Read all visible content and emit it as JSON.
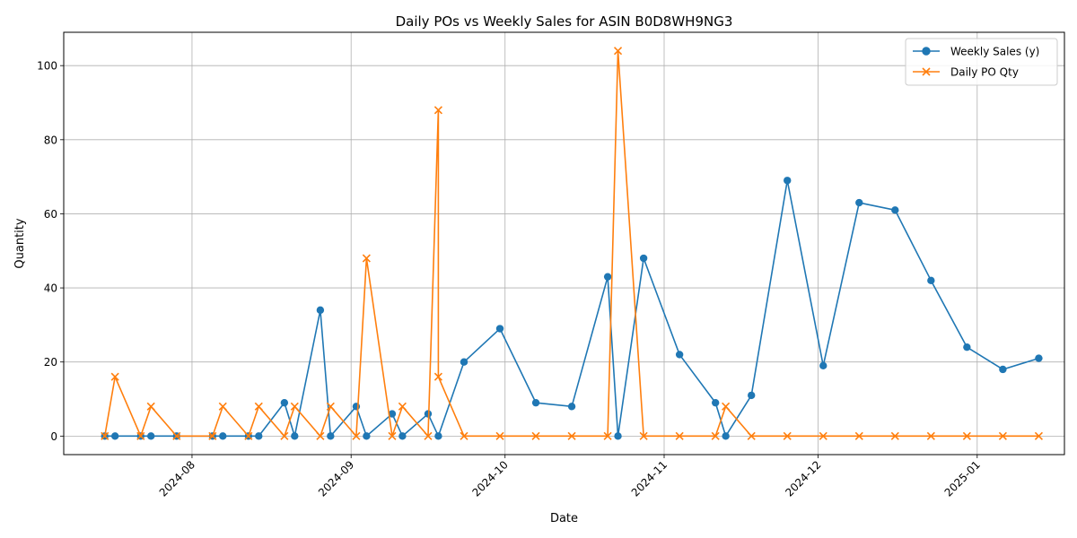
{
  "chart_data": {
    "type": "line",
    "title": "Daily POs vs Weekly Sales for ASIN B0D8WH9NG3",
    "xlabel": "Date",
    "ylabel": "Quantity",
    "x_ticks": [
      "2024-08",
      "2024-09",
      "2024-10",
      "2024-11",
      "2024-12",
      "2025-01"
    ],
    "y_ticks": [
      "0",
      "20",
      "40",
      "60",
      "80",
      "100"
    ],
    "xlim": [
      "2024-07-07",
      "2025-01-18"
    ],
    "ylim": [
      -5,
      109
    ],
    "grid": true,
    "legend": "top-right",
    "colors": {
      "weekly_sales": "#1f77b4",
      "daily_po": "#ff7f0e"
    },
    "series": [
      {
        "name": "Weekly Sales (y)",
        "marker": "circle",
        "points": [
          {
            "x": "2024-07-15",
            "y": 0
          },
          {
            "x": "2024-07-17",
            "y": 0
          },
          {
            "x": "2024-07-22",
            "y": 0
          },
          {
            "x": "2024-07-24",
            "y": 0
          },
          {
            "x": "2024-07-29",
            "y": 0
          },
          {
            "x": "2024-08-05",
            "y": 0
          },
          {
            "x": "2024-08-07",
            "y": 0
          },
          {
            "x": "2024-08-12",
            "y": 0
          },
          {
            "x": "2024-08-14",
            "y": 0
          },
          {
            "x": "2024-08-19",
            "y": 9
          },
          {
            "x": "2024-08-21",
            "y": 0
          },
          {
            "x": "2024-08-26",
            "y": 34
          },
          {
            "x": "2024-08-28",
            "y": 0
          },
          {
            "x": "2024-09-02",
            "y": 8
          },
          {
            "x": "2024-09-04",
            "y": 0
          },
          {
            "x": "2024-09-09",
            "y": 6
          },
          {
            "x": "2024-09-11",
            "y": 0
          },
          {
            "x": "2024-09-16",
            "y": 6
          },
          {
            "x": "2024-09-18",
            "y": 0
          },
          {
            "x": "2024-09-23",
            "y": 20
          },
          {
            "x": "2024-09-30",
            "y": 29
          },
          {
            "x": "2024-10-07",
            "y": 9
          },
          {
            "x": "2024-10-14",
            "y": 8
          },
          {
            "x": "2024-10-21",
            "y": 43
          },
          {
            "x": "2024-10-23",
            "y": 0
          },
          {
            "x": "2024-10-28",
            "y": 48
          },
          {
            "x": "2024-11-04",
            "y": 22
          },
          {
            "x": "2024-11-11",
            "y": 9
          },
          {
            "x": "2024-11-13",
            "y": 0
          },
          {
            "x": "2024-11-18",
            "y": 11
          },
          {
            "x": "2024-11-25",
            "y": 69
          },
          {
            "x": "2024-12-02",
            "y": 19
          },
          {
            "x": "2024-12-09",
            "y": 63
          },
          {
            "x": "2024-12-16",
            "y": 61
          },
          {
            "x": "2024-12-23",
            "y": 42
          },
          {
            "x": "2024-12-30",
            "y": 24
          },
          {
            "x": "2025-01-06",
            "y": 18
          },
          {
            "x": "2025-01-13",
            "y": 21
          }
        ]
      },
      {
        "name": "Daily PO Qty",
        "marker": "x",
        "points": [
          {
            "x": "2024-07-15",
            "y": 0
          },
          {
            "x": "2024-07-17",
            "y": 16
          },
          {
            "x": "2024-07-22",
            "y": 0
          },
          {
            "x": "2024-07-24",
            "y": 8
          },
          {
            "x": "2024-07-29",
            "y": 0
          },
          {
            "x": "2024-08-05",
            "y": 0
          },
          {
            "x": "2024-08-07",
            "y": 8
          },
          {
            "x": "2024-08-12",
            "y": 0
          },
          {
            "x": "2024-08-14",
            "y": 8
          },
          {
            "x": "2024-08-19",
            "y": 0
          },
          {
            "x": "2024-08-21",
            "y": 8
          },
          {
            "x": "2024-08-26",
            "y": 0
          },
          {
            "x": "2024-08-28",
            "y": 8
          },
          {
            "x": "2024-09-02",
            "y": 0
          },
          {
            "x": "2024-09-04",
            "y": 48
          },
          {
            "x": "2024-09-09",
            "y": 0
          },
          {
            "x": "2024-09-11",
            "y": 8
          },
          {
            "x": "2024-09-16",
            "y": 0
          },
          {
            "x": "2024-09-18",
            "y": 88
          },
          {
            "x": "2024-09-18",
            "y": 16
          },
          {
            "x": "2024-09-23",
            "y": 0
          },
          {
            "x": "2024-09-30",
            "y": 0
          },
          {
            "x": "2024-10-07",
            "y": 0
          },
          {
            "x": "2024-10-14",
            "y": 0
          },
          {
            "x": "2024-10-21",
            "y": 0
          },
          {
            "x": "2024-10-23",
            "y": 104
          },
          {
            "x": "2024-10-28",
            "y": 0
          },
          {
            "x": "2024-11-04",
            "y": 0
          },
          {
            "x": "2024-11-11",
            "y": 0
          },
          {
            "x": "2024-11-13",
            "y": 8
          },
          {
            "x": "2024-11-18",
            "y": 0
          },
          {
            "x": "2024-11-25",
            "y": 0
          },
          {
            "x": "2024-12-02",
            "y": 0
          },
          {
            "x": "2024-12-09",
            "y": 0
          },
          {
            "x": "2024-12-16",
            "y": 0
          },
          {
            "x": "2024-12-23",
            "y": 0
          },
          {
            "x": "2024-12-30",
            "y": 0
          },
          {
            "x": "2025-01-06",
            "y": 0
          },
          {
            "x": "2025-01-13",
            "y": 0
          }
        ]
      }
    ]
  }
}
